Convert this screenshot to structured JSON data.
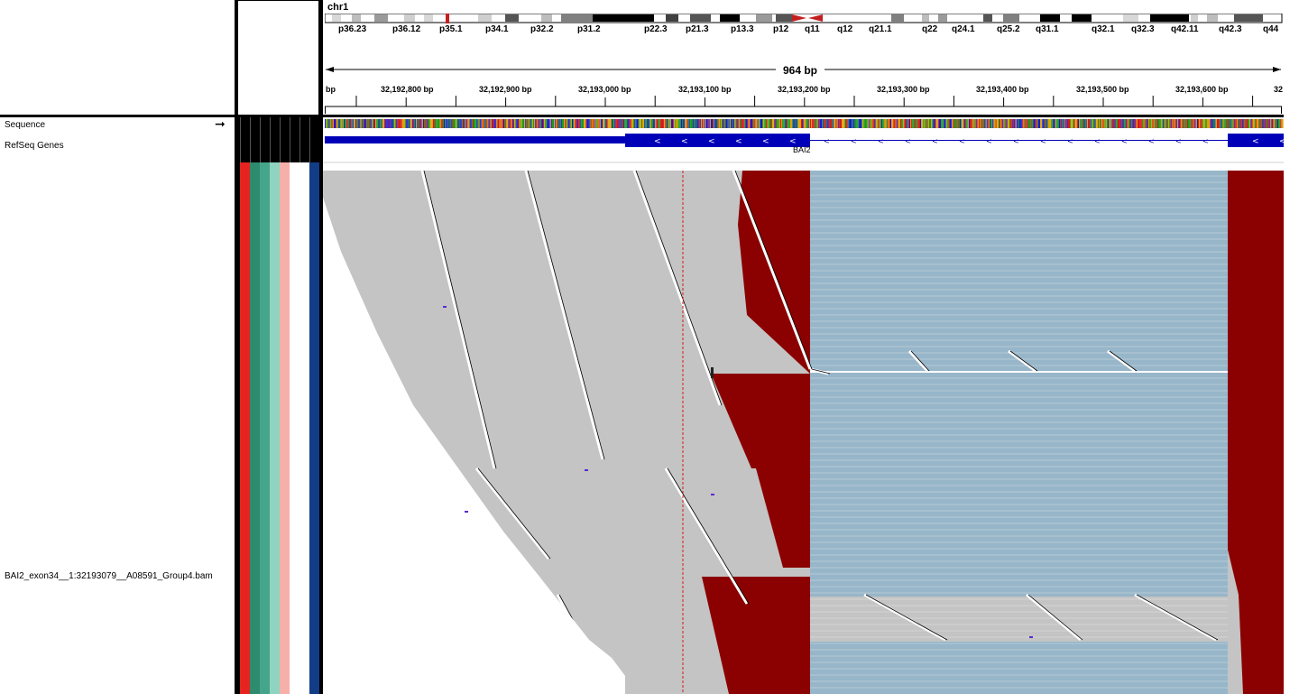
{
  "header": {
    "chromosome": "chr1",
    "region_span": "964 bp",
    "ideogram_bands": [
      "p36.23",
      "p36.12",
      "p35.1",
      "p34.1",
      "p32.2",
      "p31.2",
      "p22.3",
      "p21.3",
      "p13.3",
      "p12",
      "q11",
      "q12",
      "q21.1",
      "q22",
      "q24.1",
      "q25.2",
      "q31.1",
      "q32.1",
      "q32.3",
      "q42.11",
      "q42.3",
      "q44"
    ],
    "ruler_ticks": [
      "bp",
      "32,192,800 bp",
      "32,192,900 bp",
      "32,193,000 bp",
      "32,193,100 bp",
      "32,193,200 bp",
      "32,193,300 bp",
      "32,193,400 bp",
      "32,193,500 bp",
      "32,193,600 bp",
      "32"
    ]
  },
  "tracks": {
    "sequence": "Sequence",
    "refseq": "RefSeq Genes",
    "bam": "BAI2_exon34__1:32193079__A08591_Group4.bam"
  },
  "gene": {
    "name": "BAI2",
    "strand": "-"
  },
  "attribute_colors": [
    "#e52420",
    "#2e8b6e",
    "#45a58a",
    "#8fd4c0",
    "#f6b0aa",
    "#ffffff",
    "#ffffff",
    "#123d86"
  ],
  "colors": {
    "read_gray": "#c4c4c4",
    "read_blue": "#98b6c9",
    "mismatch_red": "#8b0000",
    "gene_blue": "#0000b8",
    "centromere": "#c41f1f"
  }
}
